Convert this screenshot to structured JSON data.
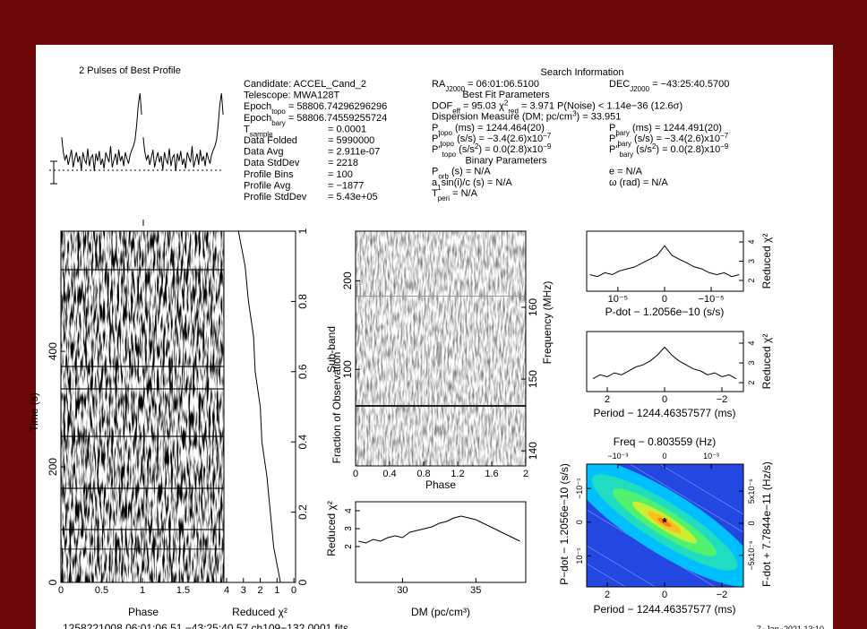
{
  "profile": {
    "title": "2 Pulses of Best Profile",
    "values": [
      0.62,
      0.5,
      0.44,
      0.48,
      0.4,
      0.46,
      0.52,
      0.38,
      0.45,
      0.5,
      0.42,
      0.47,
      0.36,
      0.5,
      0.44,
      0.41,
      0.53,
      0.39,
      0.46,
      0.48,
      0.35,
      0.49,
      0.43,
      0.51,
      0.4,
      0.45,
      0.37,
      0.5,
      0.46,
      0.42,
      0.55,
      0.38,
      0.44,
      0.49,
      0.4,
      0.52,
      0.43,
      0.47,
      0.39,
      0.5,
      0.45,
      0.41,
      0.48,
      0.52,
      0.55,
      0.6,
      0.72,
      0.88,
      0.97,
      0.8
    ]
  },
  "info": {
    "left": [
      {
        "parts": [
          {
            "t": "Candidate:  ACCEL_Cand_2"
          }
        ]
      },
      {
        "parts": [
          {
            "t": "Telescope:  MWA128T"
          }
        ]
      },
      {
        "parts": [
          {
            "t": "Epoch"
          },
          {
            "t": "topo",
            "s": "sub"
          },
          {
            "t": " = 58806.74296296296"
          }
        ]
      },
      {
        "parts": [
          {
            "t": "Epoch"
          },
          {
            "t": "bary",
            "s": "sub"
          },
          {
            "t": " = 58806.74559255724"
          }
        ]
      },
      {
        "parts": [
          {
            "t": "T"
          },
          {
            "t": "sample",
            "s": "sub"
          }
        ],
        "value": "= 0.0001"
      },
      {
        "parts": [
          {
            "t": "Data Folded"
          }
        ],
        "value": "= 5990000"
      },
      {
        "parts": [
          {
            "t": "Data Avg"
          }
        ],
        "value": "= 2.911e-07"
      },
      {
        "parts": [
          {
            "t": "Data StdDev"
          }
        ],
        "value": "= 2218"
      },
      {
        "parts": [
          {
            "t": "Profile Bins"
          }
        ],
        "value": "= 100"
      },
      {
        "parts": [
          {
            "t": "Profile Avg"
          }
        ],
        "value": "= −1877"
      },
      {
        "parts": [
          {
            "t": "Profile StdDev"
          }
        ],
        "value": "= 5.43e+05"
      }
    ]
  },
  "search": {
    "title": "Search Information",
    "rows": [
      {
        "l": [
          {
            "t": "RA"
          },
          {
            "t": "J2000",
            "s": "sub"
          },
          {
            "t": " = 06:01:06.5100"
          }
        ],
        "r": [
          {
            "t": "DEC"
          },
          {
            "t": "J2000",
            "s": "sub"
          },
          {
            "t": " = −43:25:40.5700"
          }
        ]
      },
      {
        "c": [
          {
            "t": "Best Fit Parameters"
          }
        ]
      },
      {
        "l": [
          {
            "t": "DOF"
          },
          {
            "t": "eff",
            "s": "sub"
          },
          {
            "t": " = 95.03  χ"
          },
          {
            "t": "2",
            "s": "sup"
          },
          {
            "t": "red",
            "s": "sub"
          },
          {
            "t": " = 3.971  P(Noise) < 1.14e−36  (12.6σ)"
          }
        ]
      },
      {
        "l": [
          {
            "t": "Dispersion Measure (DM; pc/cm"
          },
          {
            "t": "3",
            "s": "sup"
          },
          {
            "t": ") = 33.951"
          }
        ]
      },
      {
        "l": [
          {
            "t": "P"
          },
          {
            "t": "topo",
            "s": "sub"
          },
          {
            "t": " (ms) = 1244.464(20)"
          }
        ],
        "r": [
          {
            "t": "P"
          },
          {
            "t": "bary",
            "s": "sub"
          },
          {
            "t": " (ms) = 1244.491(20)"
          }
        ]
      },
      {
        "l": [
          {
            "t": "P'"
          },
          {
            "t": "topo",
            "s": "sub"
          },
          {
            "t": " (s/s) = −3.4(2.6)x10"
          },
          {
            "t": "−7",
            "s": "sup"
          }
        ],
        "r": [
          {
            "t": "P'"
          },
          {
            "t": "bary",
            "s": "sub"
          },
          {
            "t": " (s/s) = −3.4(2.6)x10"
          },
          {
            "t": "−7",
            "s": "sup"
          }
        ]
      },
      {
        "l": [
          {
            "t": "P''"
          },
          {
            "t": "topo",
            "s": "sub"
          },
          {
            "t": " (s/s"
          },
          {
            "t": "2",
            "s": "sup"
          },
          {
            "t": ") = 0.0(2.8)x10"
          },
          {
            "t": "−9",
            "s": "sup"
          }
        ],
        "r": [
          {
            "t": "P''"
          },
          {
            "t": "bary",
            "s": "sub"
          },
          {
            "t": " (s/s"
          },
          {
            "t": "2",
            "s": "sup"
          },
          {
            "t": ") = 0.0(2.8)x10"
          },
          {
            "t": "−9",
            "s": "sup"
          }
        ]
      },
      {
        "c": [
          {
            "t": "Binary Parameters"
          }
        ]
      },
      {
        "l": [
          {
            "t": "P"
          },
          {
            "t": "orb",
            "s": "sub"
          },
          {
            "t": " (s) = N/A"
          }
        ],
        "r": [
          {
            "t": "e = N/A"
          }
        ]
      },
      {
        "l": [
          {
            "t": "a"
          },
          {
            "t": "1",
            "s": "sub"
          },
          {
            "t": "sin(i)/c (s) = N/A"
          }
        ],
        "r": [
          {
            "t": "ω (rad) = N/A"
          }
        ]
      },
      {
        "l": [
          {
            "t": "T"
          },
          {
            "t": "peri",
            "s": "sub"
          },
          {
            "t": " = N/A"
          }
        ]
      }
    ]
  },
  "time_phase": {
    "xlabel": "Phase",
    "ylabel": "Time (s)",
    "xlim": [
      0,
      2
    ],
    "xticks": [
      0,
      0.5,
      1,
      1.5
    ],
    "ylim": [
      0,
      608
    ],
    "yticks": [
      0,
      200,
      400
    ]
  },
  "chi2_time": {
    "xlabel": "Reduced χ²",
    "ylabel": "Fraction of Observation",
    "xlim": [
      4.16,
      -0.1
    ],
    "xticks": [
      4,
      3,
      2,
      1,
      0
    ],
    "ylim": [
      0,
      1
    ],
    "yticks": [
      0,
      0.2,
      0.4,
      0.6,
      0.8,
      1
    ],
    "fraction": [
      0,
      0.1,
      0.2,
      0.3,
      0.4,
      0.5,
      0.6,
      0.7,
      0.8,
      0.9,
      1
    ],
    "chi2": [
      0.8,
      1.2,
      1.4,
      1.6,
      1.9,
      2.0,
      2.3,
      2.4,
      2.7,
      2.9,
      3.3
    ]
  },
  "subbands": {
    "xlabel": "Phase",
    "ylabel": "Sub-band",
    "y2label": "Frequency (MHz)",
    "xlim": [
      0,
      2
    ],
    "xticks": [
      0,
      0.4,
      0.8,
      1.2,
      1.6,
      2
    ],
    "ylim": [
      -9,
      256
    ],
    "yticks": [
      100,
      200
    ],
    "y2lim": [
      137.9,
      170.6
    ],
    "y2ticks": [
      140,
      150,
      160
    ]
  },
  "dm": {
    "xlabel": "DM (pc/cm³)",
    "ylabel": "Reduced χ²",
    "xlim": [
      26.8,
      38.4
    ],
    "xticks": [
      30,
      35
    ],
    "ylim": [
      0,
      4.5
    ],
    "yticks": [
      2,
      3,
      4
    ],
    "x": [
      27,
      27.5,
      28,
      28.5,
      29,
      29.5,
      30,
      30.5,
      31,
      31.5,
      32,
      32.5,
      33,
      33.5,
      34,
      34.5,
      35,
      35.5,
      36,
      36.5,
      37,
      37.5,
      38
    ],
    "values": [
      2.3,
      2.2,
      2.4,
      2.3,
      2.5,
      2.6,
      2.5,
      2.8,
      2.9,
      3.0,
      3.1,
      3.3,
      3.4,
      3.6,
      3.7,
      3.6,
      3.5,
      3.3,
      3.1,
      2.9,
      2.7,
      2.5,
      2.3
    ]
  },
  "pdot": {
    "xlabel": "P-dot − 1.2056e−10 (s/s)",
    "ylabel": "Reduced χ²",
    "xlim": [
      1.67e-05,
      -1.69e-05
    ],
    "xticks": [
      {
        "value": 1e-05,
        "label": "10⁻⁵"
      },
      0,
      {
        "value": -1e-05,
        "label": "−10⁻⁵"
      }
    ],
    "ylim": [
      1.44,
      4.56
    ],
    "yticks": [
      2,
      3,
      4
    ],
    "x": [
      1.6e-05,
      1.44e-05,
      1.28e-05,
      1.12e-05,
      9.6e-06,
      8e-06,
      6.4e-06,
      4.8e-06,
      3.2e-06,
      1.6e-06,
      0,
      -1.6e-06,
      -3.2e-06,
      -4.8e-06,
      -6.4e-06,
      -8e-06,
      -9.6e-06,
      -1.12e-05,
      -1.28e-05,
      -1.44e-05,
      -1.6e-05
    ],
    "values": [
      2.3,
      2.2,
      2.4,
      2.3,
      2.5,
      2.6,
      2.7,
      2.9,
      3.1,
      3.3,
      3.8,
      3.3,
      3.1,
      2.9,
      2.7,
      2.6,
      2.4,
      2.3,
      2.4,
      2.2,
      2.3
    ]
  },
  "period": {
    "xlabel": "Period − 1244.46357577 (ms)",
    "ylabel": "Reduced χ²",
    "xlim": [
      2.72,
      -2.75
    ],
    "xticks": [
      2,
      0,
      {
        "value": -2,
        "label": "−2"
      }
    ],
    "ylim": [
      1.55,
      4.59
    ],
    "yticks": [
      2,
      3,
      4
    ],
    "x": [
      2.5,
      2.25,
      2,
      1.75,
      1.5,
      1.25,
      1,
      0.75,
      0.5,
      0.25,
      0,
      -0.25,
      -0.5,
      -0.75,
      -1,
      -1.25,
      -1.5,
      -1.75,
      -2,
      -2.25,
      -2.5
    ],
    "values": [
      2.2,
      2.4,
      2.3,
      2.5,
      2.4,
      2.6,
      2.8,
      2.9,
      3.1,
      3.4,
      3.8,
      3.4,
      3.1,
      2.9,
      2.7,
      2.6,
      2.4,
      2.5,
      2.3,
      2.4,
      2.2
    ]
  },
  "contour": {
    "title": "Freq − 0.803559 (Hz)",
    "xlabel": "Period − 1244.46357577 (ms)",
    "ylabel": "P−dot − 1.2056e−10 (s/s)",
    "y2label": "F-dot + 7.7844e−11 (Hz/s)",
    "xlim": [
      2.72,
      -2.75
    ],
    "xticks": [
      2,
      0,
      {
        "value": -2,
        "label": "−2"
      }
    ],
    "x2lim": [
      -0.00167,
      0.00169
    ],
    "x2ticks": [
      {
        "value": -0.001,
        "label": "−10⁻³"
      },
      0,
      {
        "value": 0.001,
        "label": "10⁻³"
      }
    ],
    "ylim": [
      1.92e-05,
      -1.72e-05
    ],
    "yticks": [
      {
        "value": -1e-05,
        "label": "−10⁻⁵"
      },
      0,
      {
        "value": 1e-05,
        "label": "10⁻⁵"
      }
    ],
    "y2lim": [
      -9.9e-06,
      9.2e-06
    ],
    "y2ticks": [
      {
        "value": 5e-06,
        "label": "5x10⁻⁶"
      },
      0,
      {
        "value": -5e-06,
        "label": "−5x10⁻⁶"
      }
    ],
    "best_period": 0,
    "best_pdot": 0
  },
  "footer": {
    "left": "1258221008  06:01:06.51  −43:25:40.57  ch109−132  0001.fits",
    "right": "7−Jan−2021 13:10"
  }
}
